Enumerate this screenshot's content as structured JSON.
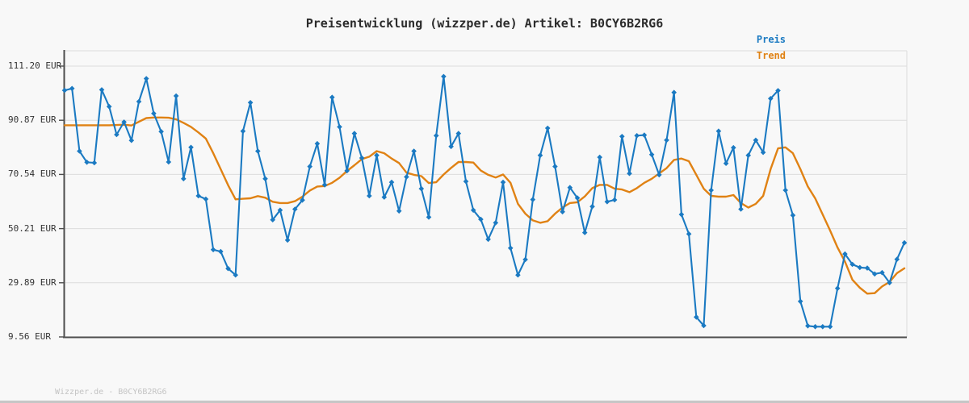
{
  "header": {
    "title": "Preisentwicklung (wizzper.de) Artikel: B0CY6B2RG6"
  },
  "legend": [
    {
      "label": "Preis",
      "color": "#1b7ac2"
    },
    {
      "label": "Trend",
      "color": "#e08214"
    }
  ],
  "footer": {
    "text": "Wizzper.de - B0CY6B2RG6"
  },
  "chart_data": {
    "type": "line",
    "title": "Preisentwicklung (wizzper.de) Artikel: B0CY6B2RG6",
    "xlabel": "",
    "ylabel": "",
    "x_axis_labels": "none shown (time series, unlabeled)",
    "grid": "horizontal",
    "legend_position": "top-right",
    "currency": "EUR",
    "y_ticks": [
      "111.20 EUR",
      "90.87 EUR",
      "70.54 EUR",
      "50.21 EUR",
      "29.89 EUR",
      "9.56 EUR"
    ],
    "y_tick_values": [
      111.2,
      90.87,
      70.54,
      50.21,
      29.89,
      9.56
    ],
    "ylim": [
      9.56,
      116.95
    ],
    "series": [
      {
        "name": "Preis",
        "color": "#1b7ac2",
        "marker": "diamond",
        "values": [
          102.1,
          102.8,
          79.3,
          75.1,
          74.9,
          102.3,
          96.0,
          85.5,
          90.2,
          83.3,
          97.9,
          106.5,
          93.4,
          86.6,
          75.2,
          100.0,
          68.9,
          80.7,
          62.5,
          61.3,
          42.3,
          41.6,
          35.2,
          32.8,
          86.8,
          97.5,
          79.3,
          68.9,
          53.5,
          57.1,
          45.9,
          57.5,
          60.9,
          73.5,
          82.1,
          66.6,
          99.5,
          88.4,
          71.9,
          85.9,
          76.7,
          62.5,
          77.7,
          62.0,
          67.6,
          56.8,
          69.6,
          79.3,
          65.2,
          54.5,
          85.1,
          107.3,
          81.0,
          85.9,
          67.9,
          57.1,
          53.7,
          46.2,
          52.4,
          67.6,
          42.9,
          32.8,
          38.6,
          61.1,
          77.7,
          87.9,
          73.5,
          56.5,
          65.6,
          61.7,
          48.7,
          58.5,
          77.0,
          60.3,
          61.0,
          84.8,
          70.9,
          85.1,
          85.3,
          78.0,
          70.4,
          83.4,
          101.3,
          55.5,
          48.2,
          17.0,
          13.8,
          64.6,
          86.8,
          74.7,
          80.6,
          57.5,
          77.7,
          83.4,
          78.8,
          99.0,
          102.0,
          64.6,
          55.2,
          22.9,
          13.7,
          13.4,
          13.4,
          13.4,
          27.8,
          40.7,
          36.8,
          35.6,
          35.4,
          33.2,
          33.7,
          29.9,
          38.7,
          44.9
        ]
      },
      {
        "name": "Trend",
        "color": "#e08214",
        "marker": "none",
        "values": [
          89.0,
          89.0,
          89.0,
          89.0,
          89.0,
          89.0,
          89.0,
          89.1,
          89.2,
          88.9,
          90.3,
          91.7,
          91.9,
          91.9,
          91.8,
          91.2,
          89.9,
          88.4,
          86.3,
          84.0,
          78.5,
          72.5,
          66.5,
          61.2,
          61.4,
          61.6,
          62.4,
          61.8,
          60.3,
          59.8,
          59.8,
          60.5,
          62.2,
          64.5,
          66.0,
          66.2,
          67.4,
          69.3,
          71.8,
          74.0,
          76.3,
          77.2,
          79.3,
          78.5,
          76.5,
          74.8,
          71.2,
          70.4,
          69.9,
          67.3,
          67.6,
          70.5,
          73.0,
          75.2,
          75.2,
          75.0,
          72.0,
          70.4,
          69.4,
          70.5,
          67.4,
          59.5,
          55.8,
          53.3,
          52.4,
          53.0,
          55.8,
          58.1,
          59.8,
          60.1,
          62.3,
          65.4,
          66.6,
          66.6,
          65.2,
          64.9,
          63.9,
          65.4,
          67.4,
          68.9,
          70.9,
          72.9,
          76.0,
          76.5,
          75.5,
          70.4,
          65.2,
          62.5,
          62.2,
          62.2,
          62.8,
          59.8,
          58.1,
          59.5,
          62.5,
          72.5,
          80.3,
          80.7,
          78.5,
          72.5,
          66.0,
          61.5,
          55.5,
          49.5,
          43.1,
          37.8,
          31.0,
          28.0,
          25.8,
          26.0,
          28.5,
          30.2,
          33.5,
          35.3
        ]
      }
    ]
  }
}
